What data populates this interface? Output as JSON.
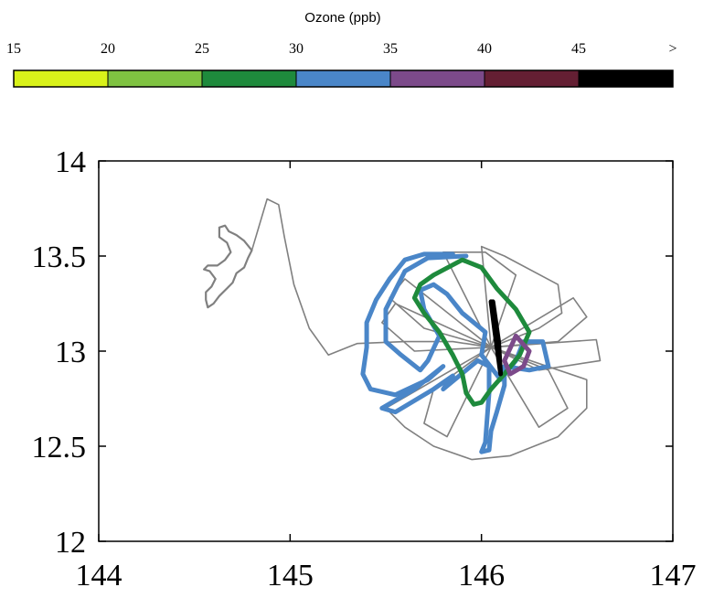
{
  "chart_data": {
    "type": "line",
    "title": "",
    "xlabel": "",
    "ylabel": "",
    "xlim": [
      144,
      147
    ],
    "ylim": [
      12,
      14
    ],
    "xticks": [
      "144",
      "145",
      "146",
      "147"
    ],
    "yticks": [
      "12",
      "12.5",
      "13",
      "13.5",
      "14"
    ],
    "grid": false,
    "colorbar": {
      "title": "Ozone (ppb)",
      "tick_labels": [
        "15",
        "20",
        "25",
        "30",
        "35",
        "40",
        "45",
        ">"
      ],
      "bins": [
        {
          "range": "15-20",
          "color": "#d9f21a"
        },
        {
          "range": "20-25",
          "color": "#7fc241"
        },
        {
          "range": "25-30",
          "color": "#1e8a3c"
        },
        {
          "range": "30-35",
          "color": "#4a86c8"
        },
        {
          "range": "35-40",
          "color": "#7c4a8a"
        },
        {
          "range": "40-45",
          "color": "#641f33"
        },
        {
          "range": ">45",
          "color": "#000000"
        }
      ]
    },
    "series": [
      {
        "color": "#808080",
        "role": "island-outline",
        "points": [
          [
            144.63,
            13.65
          ],
          [
            144.66,
            13.66
          ],
          [
            144.68,
            13.63
          ],
          [
            144.72,
            13.61
          ],
          [
            144.76,
            13.58
          ],
          [
            144.8,
            13.53
          ],
          [
            144.78,
            13.49
          ],
          [
            144.76,
            13.44
          ],
          [
            144.72,
            13.41
          ],
          [
            144.7,
            13.36
          ],
          [
            144.67,
            13.33
          ],
          [
            144.63,
            13.29
          ],
          [
            144.6,
            13.25
          ],
          [
            144.57,
            13.23
          ],
          [
            144.56,
            13.27
          ],
          [
            144.56,
            13.31
          ],
          [
            144.59,
            13.34
          ],
          [
            144.61,
            13.38
          ],
          [
            144.58,
            13.42
          ],
          [
            144.55,
            13.43
          ],
          [
            144.57,
            13.45
          ],
          [
            144.62,
            13.45
          ],
          [
            144.66,
            13.48
          ],
          [
            144.69,
            13.52
          ],
          [
            144.67,
            13.57
          ],
          [
            144.63,
            13.6
          ],
          [
            144.63,
            13.65
          ]
        ]
      },
      {
        "color": "#808080",
        "role": "flight-track",
        "points": [
          [
            144.8,
            13.53
          ],
          [
            144.88,
            13.8
          ],
          [
            144.94,
            13.77
          ],
          [
            144.97,
            13.6
          ],
          [
            145.02,
            13.35
          ],
          [
            145.1,
            13.12
          ],
          [
            145.2,
            12.98
          ],
          [
            145.35,
            13.04
          ],
          [
            145.6,
            13.05
          ],
          [
            145.85,
            13.05
          ],
          [
            146.05,
            13.02
          ]
        ]
      },
      {
        "color": "#808080",
        "role": "flight-track",
        "points": [
          [
            146.05,
            13.02
          ],
          [
            146.0,
            13.55
          ],
          [
            146.12,
            13.5
          ],
          [
            146.4,
            13.35
          ],
          [
            146.42,
            13.2
          ],
          [
            146.3,
            13.12
          ],
          [
            146.05,
            13.02
          ]
        ]
      },
      {
        "color": "#808080",
        "role": "flight-track",
        "points": [
          [
            146.05,
            13.02
          ],
          [
            146.6,
            13.06
          ],
          [
            146.62,
            12.95
          ],
          [
            146.3,
            12.9
          ],
          [
            146.05,
            13.02
          ]
        ]
      },
      {
        "color": "#808080",
        "role": "flight-track",
        "points": [
          [
            146.05,
            13.02
          ],
          [
            146.55,
            12.85
          ],
          [
            146.55,
            12.7
          ],
          [
            146.4,
            12.55
          ],
          [
            146.15,
            12.45
          ],
          [
            145.95,
            12.43
          ],
          [
            145.75,
            12.5
          ],
          [
            145.6,
            12.6
          ],
          [
            145.5,
            12.7
          ],
          [
            146.05,
            13.02
          ]
        ]
      },
      {
        "color": "#808080",
        "role": "flight-track",
        "points": [
          [
            146.05,
            13.02
          ],
          [
            145.55,
            13.25
          ],
          [
            145.48,
            13.15
          ],
          [
            145.65,
            13.0
          ],
          [
            146.05,
            13.02
          ]
        ]
      },
      {
        "color": "#808080",
        "role": "flight-track",
        "points": [
          [
            146.05,
            13.02
          ],
          [
            145.8,
            13.52
          ],
          [
            146.02,
            13.52
          ],
          [
            146.18,
            13.4
          ],
          [
            146.05,
            13.02
          ]
        ]
      },
      {
        "color": "#808080",
        "role": "flight-track",
        "points": [
          [
            146.05,
            13.02
          ],
          [
            145.82,
            12.55
          ],
          [
            145.7,
            12.62
          ],
          [
            145.75,
            12.8
          ],
          [
            146.05,
            13.02
          ]
        ]
      },
      {
        "color": "#808080",
        "role": "flight-track",
        "points": [
          [
            146.05,
            13.02
          ],
          [
            146.3,
            12.6
          ],
          [
            146.45,
            12.7
          ],
          [
            146.35,
            12.9
          ],
          [
            146.05,
            13.02
          ]
        ]
      },
      {
        "color": "#808080",
        "role": "flight-track",
        "points": [
          [
            146.05,
            13.02
          ],
          [
            146.48,
            13.28
          ],
          [
            146.55,
            13.18
          ],
          [
            146.4,
            13.05
          ],
          [
            146.05,
            13.02
          ]
        ]
      },
      {
        "color": "#808080",
        "role": "flight-track",
        "points": [
          [
            146.05,
            13.02
          ],
          [
            145.6,
            13.38
          ],
          [
            145.52,
            13.28
          ],
          [
            145.7,
            13.12
          ],
          [
            146.05,
            13.02
          ]
        ]
      },
      {
        "color": "#4a86c8",
        "role": "ozone-30-35",
        "points": [
          [
            145.85,
            13.51
          ],
          [
            145.7,
            13.51
          ],
          [
            145.6,
            13.48
          ],
          [
            145.52,
            13.38
          ],
          [
            145.45,
            13.27
          ],
          [
            145.4,
            13.15
          ],
          [
            145.4,
            13.02
          ],
          [
            145.38,
            12.88
          ],
          [
            145.42,
            12.8
          ],
          [
            145.55,
            12.77
          ],
          [
            145.72,
            12.85
          ],
          [
            145.8,
            12.92
          ],
          [
            145.65,
            12.8
          ],
          [
            145.48,
            12.7
          ],
          [
            145.55,
            12.68
          ],
          [
            145.75,
            12.8
          ],
          [
            145.85,
            12.87
          ],
          [
            145.8,
            12.8
          ],
          [
            145.98,
            12.95
          ],
          [
            146.04,
            12.92
          ],
          [
            146.04,
            12.78
          ],
          [
            146.03,
            12.65
          ],
          [
            146.02,
            12.52
          ],
          [
            146.0,
            12.47
          ],
          [
            146.04,
            12.48
          ],
          [
            146.05,
            12.58
          ],
          [
            146.08,
            12.68
          ],
          [
            146.12,
            12.82
          ],
          [
            146.12,
            12.92
          ],
          [
            146.25,
            12.9
          ],
          [
            146.35,
            12.92
          ],
          [
            146.32,
            13.05
          ],
          [
            146.22,
            13.05
          ],
          [
            146.18,
            12.95
          ],
          [
            146.1,
            12.85
          ],
          [
            146.0,
            12.98
          ],
          [
            146.02,
            13.1
          ],
          [
            145.9,
            13.2
          ],
          [
            145.82,
            13.3
          ],
          [
            145.75,
            13.35
          ],
          [
            145.68,
            13.32
          ],
          [
            145.7,
            13.22
          ],
          [
            145.78,
            13.08
          ],
          [
            145.72,
            12.95
          ],
          [
            145.68,
            12.9
          ],
          [
            145.58,
            12.98
          ],
          [
            145.5,
            13.05
          ],
          [
            145.5,
            13.22
          ],
          [
            145.6,
            13.42
          ],
          [
            145.72,
            13.49
          ],
          [
            145.92,
            13.5
          ]
        ]
      },
      {
        "color": "#1e8a3c",
        "role": "ozone-25-30",
        "points": [
          [
            145.75,
            13.4
          ],
          [
            145.9,
            13.48
          ],
          [
            146.0,
            13.44
          ],
          [
            146.08,
            13.33
          ],
          [
            146.18,
            13.22
          ],
          [
            146.25,
            13.1
          ],
          [
            146.2,
            12.98
          ],
          [
            146.12,
            12.88
          ],
          [
            146.05,
            12.8
          ],
          [
            146.0,
            12.73
          ],
          [
            145.96,
            12.72
          ],
          [
            145.92,
            12.78
          ],
          [
            145.9,
            12.88
          ],
          [
            145.85,
            12.98
          ],
          [
            145.78,
            13.1
          ],
          [
            145.7,
            13.2
          ],
          [
            145.65,
            13.28
          ],
          [
            145.68,
            13.35
          ],
          [
            145.75,
            13.4
          ]
        ]
      },
      {
        "color": "#7c4a8a",
        "role": "ozone-35-40",
        "points": [
          [
            146.18,
            13.08
          ],
          [
            146.25,
            13.0
          ],
          [
            146.22,
            12.92
          ],
          [
            146.15,
            12.88
          ],
          [
            146.12,
            12.95
          ],
          [
            146.18,
            13.08
          ]
        ]
      },
      {
        "color": "#000000",
        "role": "ozone-above-45",
        "points": [
          [
            146.06,
            13.26
          ],
          [
            146.09,
            13.05
          ],
          [
            146.1,
            12.88
          ],
          [
            146.07,
            13.1
          ],
          [
            146.05,
            13.26
          ]
        ]
      }
    ]
  }
}
